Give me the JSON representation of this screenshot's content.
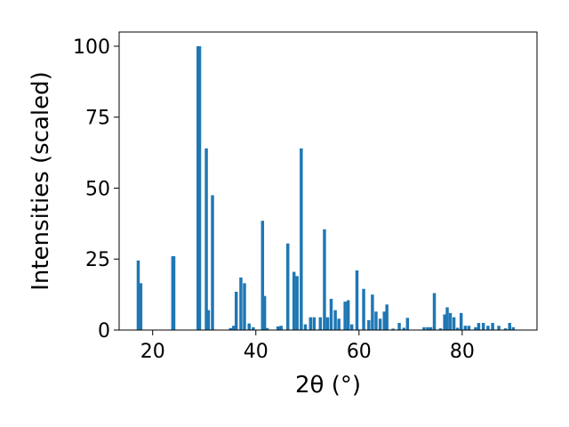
{
  "chart_data": {
    "type": "bar",
    "xlabel": "2θ (°)",
    "ylabel": "Intensities (scaled)",
    "xlim": [
      13.5,
      94.5
    ],
    "ylim": [
      0,
      105
    ],
    "x_ticks": [
      20,
      40,
      60,
      80
    ],
    "y_ticks": [
      0,
      25,
      50,
      75,
      100
    ],
    "grid": false,
    "bar_color": "#1f77b4",
    "bar_width": 0.6,
    "x": [
      17.2,
      17.7,
      23.9,
      24.1,
      28.8,
      29.1,
      30.4,
      30.8,
      31.6,
      35.1,
      35.7,
      36.2,
      37.1,
      37.8,
      38.7,
      39.5,
      41.3,
      41.7,
      42.2,
      44.3,
      44.9,
      46.2,
      47.4,
      48.0,
      48.8,
      49.6,
      50.6,
      51.3,
      52.5,
      53.3,
      53.9,
      54.6,
      55.4,
      56.1,
      57.3,
      57.9,
      58.6,
      59.6,
      60.9,
      61.9,
      62.6,
      63.3,
      64.1,
      64.9,
      65.4,
      66.6,
      67.8,
      68.7,
      69.4,
      72.6,
      73.3,
      73.9,
      74.6,
      75.8,
      76.6,
      77.1,
      77.7,
      78.4,
      79.1,
      79.8,
      80.6,
      81.3,
      82.6,
      83.2,
      84.1,
      85.0,
      85.9,
      87.1,
      88.4,
      89.2,
      89.9
    ],
    "values": [
      24.5,
      16.5,
      26.0,
      26.0,
      100.0,
      100.0,
      64.0,
      7.0,
      47.5,
      0.7,
      1.5,
      13.5,
      18.5,
      16.5,
      2.3,
      1.0,
      38.5,
      12.0,
      0.7,
      1.3,
      1.5,
      30.5,
      20.5,
      19.0,
      64.0,
      2.0,
      4.5,
      4.5,
      4.5,
      35.5,
      4.5,
      11.0,
      7.0,
      4.0,
      10.0,
      10.5,
      2.0,
      21.0,
      14.5,
      3.5,
      12.5,
      6.5,
      4.0,
      6.5,
      9.0,
      0.5,
      2.5,
      0.8,
      4.3,
      1.0,
      1.0,
      1.0,
      13.0,
      0.6,
      5.5,
      8.0,
      6.0,
      4.5,
      0.8,
      6.0,
      1.5,
      1.5,
      1.0,
      2.5,
      2.5,
      1.5,
      2.5,
      1.5,
      0.6,
      2.5,
      1.0
    ]
  }
}
